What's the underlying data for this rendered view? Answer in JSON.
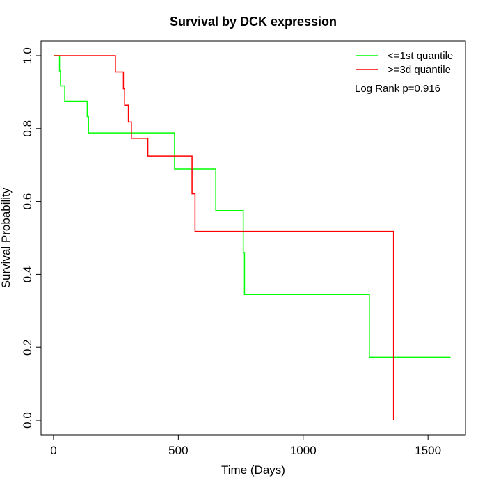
{
  "chart_data": {
    "type": "line",
    "title": "Survival by DCK expression",
    "xlabel": "Time (Days)",
    "ylabel": "Survival Probability",
    "xlim": [
      -50,
      1650
    ],
    "ylim": [
      -0.04,
      1.04
    ],
    "x_ticks": [
      0,
      500,
      1000,
      1500
    ],
    "y_ticks": [
      0.0,
      0.2,
      0.4,
      0.6,
      0.8,
      1.0
    ],
    "x_tick_labels": [
      "0",
      "500",
      "1000",
      "1500"
    ],
    "y_tick_labels": [
      "0.0",
      "0.2",
      "0.4",
      "0.6",
      "0.8",
      "1.0"
    ],
    "grid": false,
    "legend_position": "top-right",
    "annotation": "Log Rank p=0.916",
    "series": [
      {
        "name": "<=1st quantile",
        "color": "#00ff00",
        "x": [
          0,
          22,
          24,
          28,
          45,
          135,
          140,
          485,
          650,
          760,
          765,
          1265,
          1590
        ],
        "y": [
          1.0,
          1.0,
          0.958,
          0.917,
          0.875,
          0.833,
          0.788,
          0.689,
          0.575,
          0.46,
          0.345,
          0.173,
          0.173
        ]
      },
      {
        "name": ">=3d quantile",
        "color": "#ff0000",
        "x": [
          0,
          248,
          280,
          285,
          300,
          312,
          320,
          378,
          555,
          567,
          1360,
          1362
        ],
        "y": [
          1.0,
          0.955,
          0.909,
          0.864,
          0.818,
          0.773,
          0.773,
          0.725,
          0.621,
          0.518,
          0.518,
          0.0
        ]
      }
    ]
  }
}
